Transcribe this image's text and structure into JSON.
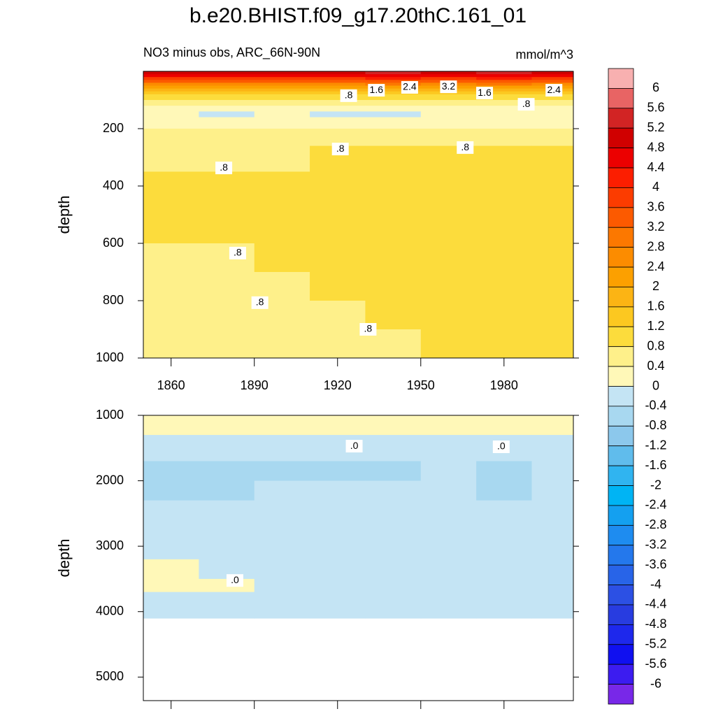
{
  "chart_data": {
    "type": "contour",
    "title": "b.e20.BHIST.f09_g17.20thC.161_01",
    "subtitle": "NO3 minus obs, ARC_66N-90N",
    "units": "mmol/m^3",
    "colorbar": {
      "levels": [
        6,
        5.6,
        5.2,
        4.8,
        4.4,
        4,
        3.6,
        3.2,
        2.8,
        2.4,
        2,
        1.6,
        1.2,
        0.8,
        0.4,
        0,
        -0.4,
        -0.8,
        -1.2,
        -1.6,
        -2,
        -2.4,
        -2.8,
        -3.2,
        -3.6,
        -4,
        -4.4,
        -4.8,
        -5.2,
        -5.6,
        -6
      ],
      "colors": [
        "#f8b0b0",
        "#e86464",
        "#d22424",
        "#d00000",
        "#ec0000",
        "#fc1e00",
        "#fc3c00",
        "#fc5a00",
        "#fc7800",
        "#fc8c00",
        "#fca000",
        "#fcb414",
        "#fcc820",
        "#fcdc3c",
        "#fef08a",
        "#fff8b8",
        "#c4e4f4",
        "#a8d8f0",
        "#8cc8ec",
        "#60bcec",
        "#30b4f0",
        "#00b4f4",
        "#14a0f0",
        "#1e8cf0",
        "#2478ec",
        "#2864e8",
        "#2c50e4",
        "#283ce0",
        "#1e28ec",
        "#1010f0",
        "#3c1cf0",
        "#7828e8"
      ]
    },
    "panels": [
      {
        "ylabel": "depth",
        "xlim": [
          1850,
          2005
        ],
        "ylim": [
          0,
          1000
        ],
        "xticks": [
          1860,
          1890,
          1920,
          1950,
          1980
        ],
        "yticks": [
          200,
          400,
          600,
          800,
          1000
        ],
        "x_edges": [
          1850,
          1870,
          1890,
          1910,
          1930,
          1950,
          1970,
          1990,
          2005
        ],
        "depth_edges": [
          0,
          10,
          20,
          30,
          40,
          50,
          60,
          70,
          80,
          100,
          120,
          140,
          160,
          180,
          200,
          230,
          260,
          300,
          350,
          400,
          450,
          500,
          600,
          700,
          800,
          900,
          1000
        ],
        "values": [
          [
            5.0,
            5.2,
            5.0,
            5.1,
            5.3,
            5.2,
            5.4,
            5.1
          ],
          [
            4.5,
            4.6,
            4.5,
            4.6,
            4.7,
            4.6,
            4.8,
            4.6
          ],
          [
            3.9,
            4.0,
            3.9,
            4.0,
            4.1,
            4.0,
            4.2,
            4.0
          ],
          [
            3.3,
            3.4,
            3.3,
            3.4,
            3.5,
            3.4,
            3.5,
            3.4
          ],
          [
            2.7,
            2.8,
            2.7,
            2.8,
            2.9,
            2.8,
            2.9,
            2.8
          ],
          [
            2.2,
            2.2,
            2.1,
            2.2,
            2.3,
            2.2,
            2.3,
            2.2
          ],
          [
            1.8,
            1.8,
            1.7,
            1.8,
            1.8,
            1.8,
            1.8,
            1.8
          ],
          [
            1.4,
            1.4,
            1.3,
            1.4,
            1.4,
            1.4,
            1.4,
            1.4
          ],
          [
            1.0,
            1.0,
            1.0,
            1.0,
            1.0,
            1.0,
            1.0,
            1.0
          ],
          [
            0.6,
            0.6,
            0.6,
            0.6,
            0.6,
            0.6,
            0.6,
            0.6
          ],
          [
            0.2,
            0.3,
            0.2,
            0.3,
            0.2,
            0.3,
            0.3,
            0.3
          ],
          [
            0.1,
            -0.1,
            0.2,
            -0.1,
            -0.1,
            0.1,
            0.2,
            0.2
          ],
          [
            0.2,
            0.2,
            0.2,
            0.2,
            0.2,
            0.2,
            0.2,
            0.2
          ],
          [
            0.3,
            0.3,
            0.3,
            0.3,
            0.3,
            0.3,
            0.3,
            0.3
          ],
          [
            0.5,
            0.5,
            0.5,
            0.5,
            0.5,
            0.5,
            0.5,
            0.5
          ],
          [
            0.6,
            0.6,
            0.6,
            0.6,
            0.6,
            0.6,
            0.6,
            0.6
          ],
          [
            0.7,
            0.7,
            0.7,
            0.9,
            0.9,
            0.9,
            0.9,
            0.9
          ],
          [
            0.6,
            0.7,
            0.7,
            0.9,
            0.9,
            0.9,
            0.9,
            0.9
          ],
          [
            0.9,
            0.9,
            0.9,
            0.9,
            0.9,
            0.9,
            0.9,
            0.9
          ],
          [
            0.9,
            0.9,
            0.9,
            0.9,
            0.9,
            0.9,
            0.9,
            0.9
          ],
          [
            0.9,
            0.9,
            0.9,
            0.9,
            0.9,
            0.9,
            0.9,
            0.9
          ],
          [
            0.9,
            0.9,
            0.9,
            0.9,
            0.9,
            0.9,
            0.9,
            0.9
          ],
          [
            0.7,
            0.7,
            0.9,
            0.9,
            0.9,
            0.9,
            0.9,
            0.9
          ],
          [
            0.7,
            0.7,
            0.7,
            0.9,
            0.9,
            0.9,
            0.9,
            0.9
          ],
          [
            0.7,
            0.7,
            0.7,
            0.7,
            0.9,
            0.9,
            0.9,
            0.9
          ],
          [
            0.7,
            0.7,
            0.7,
            0.7,
            0.7,
            0.9,
            0.9,
            0.9
          ]
        ],
        "contour_labels": [
          {
            "text": ".8",
            "x": 1924,
            "y": 85
          },
          {
            "text": "1.6",
            "x": 1934,
            "y": 66
          },
          {
            "text": "2.4",
            "x": 1946,
            "y": 56
          },
          {
            "text": "3.2",
            "x": 1960,
            "y": 54
          },
          {
            "text": "1.6",
            "x": 1973,
            "y": 76
          },
          {
            "text": "2.4",
            "x": 1998,
            "y": 66
          },
          {
            "text": ".8",
            "x": 1988,
            "y": 115
          },
          {
            "text": ".8",
            "x": 1921,
            "y": 271
          },
          {
            "text": ".8",
            "x": 1966,
            "y": 266
          },
          {
            "text": ".8",
            "x": 1879,
            "y": 337
          },
          {
            "text": ".8",
            "x": 1884,
            "y": 634
          },
          {
            "text": ".8",
            "x": 1892,
            "y": 807
          },
          {
            "text": ".8",
            "x": 1931,
            "y": 900
          }
        ]
      },
      {
        "ylabel": "depth",
        "xlim": [
          1850,
          2005
        ],
        "ylim": [
          1000,
          5360
        ],
        "xticks": [
          1860,
          1890,
          1920,
          1950,
          1980
        ],
        "yticks": [
          1000,
          2000,
          3000,
          4000,
          5000
        ],
        "x_edges": [
          1850,
          1870,
          1890,
          1910,
          1930,
          1950,
          1970,
          1990,
          2005
        ],
        "depth_edges": [
          1000,
          1100,
          1300,
          1550,
          1700,
          2000,
          2300,
          2700,
          3200,
          3500,
          3700,
          4100,
          5360
        ],
        "values": [
          [
            0.3,
            0.3,
            0.3,
            0.3,
            0.3,
            0.3,
            0.3,
            0.3
          ],
          [
            0.1,
            0.1,
            0.1,
            0.1,
            0.1,
            0.1,
            0.1,
            0.1
          ],
          [
            -0.2,
            -0.2,
            -0.2,
            -0.2,
            -0.2,
            -0.2,
            -0.2,
            -0.2
          ],
          [
            -0.3,
            -0.3,
            -0.3,
            -0.3,
            -0.3,
            -0.3,
            -0.3,
            -0.3
          ],
          [
            -0.5,
            -0.5,
            -0.5,
            -0.5,
            -0.5,
            -0.3,
            -0.5,
            -0.3
          ],
          [
            -0.5,
            -0.5,
            -0.3,
            -0.3,
            -0.3,
            -0.3,
            -0.5,
            -0.3
          ],
          [
            -0.3,
            -0.3,
            -0.3,
            -0.3,
            -0.3,
            -0.3,
            -0.3,
            -0.3
          ],
          [
            -0.3,
            -0.3,
            -0.3,
            -0.3,
            -0.3,
            -0.3,
            -0.3,
            -0.3
          ],
          [
            0.1,
            -0.3,
            -0.3,
            -0.3,
            -0.3,
            -0.3,
            -0.3,
            -0.3
          ],
          [
            0.1,
            0.1,
            -0.3,
            -0.3,
            -0.3,
            -0.3,
            -0.3,
            -0.3
          ],
          [
            -0.2,
            -0.2,
            -0.2,
            -0.2,
            -0.2,
            -0.2,
            -0.2,
            -0.2
          ],
          [
            null,
            null,
            null,
            null,
            null,
            null,
            null,
            null
          ]
        ],
        "contour_labels": [
          {
            "text": ".0",
            "x": 1926,
            "y": 1471
          },
          {
            "text": ".0",
            "x": 1979,
            "y": 1481
          },
          {
            "text": ".0",
            "x": 1883,
            "y": 3524
          }
        ]
      }
    ]
  }
}
